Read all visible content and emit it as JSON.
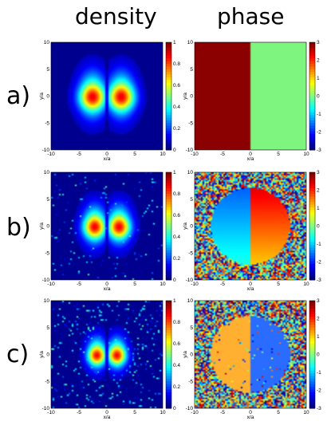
{
  "titles": {
    "density": "density",
    "phase": "phase"
  },
  "rows": [
    {
      "label": "a)",
      "density_spread": 1.0,
      "noise": 0.0,
      "phase_kind": "split"
    },
    {
      "label": "b)",
      "density_spread": 0.85,
      "noise": 0.25,
      "phase_kind": "vortex"
    },
    {
      "label": "c)",
      "density_spread": 0.7,
      "noise": 0.55,
      "phase_kind": "two-tone"
    }
  ],
  "axes": {
    "xlabel": "x/a",
    "ylabel": "y/a",
    "xticks": [
      "-10",
      "-5",
      "0",
      "5",
      "10"
    ],
    "yticks": [
      "10",
      "5",
      "0",
      "-5",
      "-10"
    ]
  },
  "colorbars": {
    "density_ticks": [
      "1",
      "0.8",
      "0.6",
      "0.4",
      "0.2",
      "0"
    ],
    "phase_ticks": [
      "3",
      "2",
      "1",
      "0",
      "-1",
      "-2",
      "-3"
    ]
  },
  "colors": {
    "background": "#00008b",
    "phase_left": "#8b0000",
    "phase_right": "#7ef57e",
    "phase_left_c": "#ffb030",
    "phase_right_c": "#2a6cff"
  },
  "chart_data": [
    {
      "type": "heatmap",
      "panel": "a-density",
      "xlabel": "x/a",
      "ylabel": "y/a",
      "xlim": [
        -10,
        10
      ],
      "ylim": [
        -10,
        10
      ],
      "clim": [
        0,
        1
      ]
    },
    {
      "type": "heatmap",
      "panel": "a-phase",
      "xlabel": "x/a",
      "ylabel": "y/a",
      "xlim": [
        -10,
        10
      ],
      "ylim": [
        -10,
        10
      ],
      "clim": [
        -3,
        3
      ]
    },
    {
      "type": "heatmap",
      "panel": "b-density",
      "xlabel": "x/a",
      "ylabel": "y/a",
      "xlim": [
        -10,
        10
      ],
      "ylim": [
        -10,
        10
      ],
      "clim": [
        0,
        1
      ]
    },
    {
      "type": "heatmap",
      "panel": "b-phase",
      "xlabel": "x/a",
      "ylabel": "y/a",
      "xlim": [
        -10,
        10
      ],
      "ylim": [
        -10,
        10
      ],
      "clim": [
        -3,
        3
      ]
    },
    {
      "type": "heatmap",
      "panel": "c-density",
      "xlabel": "x/a",
      "ylabel": "y/a",
      "xlim": [
        -10,
        10
      ],
      "ylim": [
        -10,
        10
      ],
      "clim": [
        0,
        1
      ]
    },
    {
      "type": "heatmap",
      "panel": "c-phase",
      "xlabel": "x/a",
      "ylabel": "y/a",
      "xlim": [
        -10,
        10
      ],
      "ylim": [
        -10,
        10
      ],
      "clim": [
        -3,
        3
      ]
    }
  ]
}
